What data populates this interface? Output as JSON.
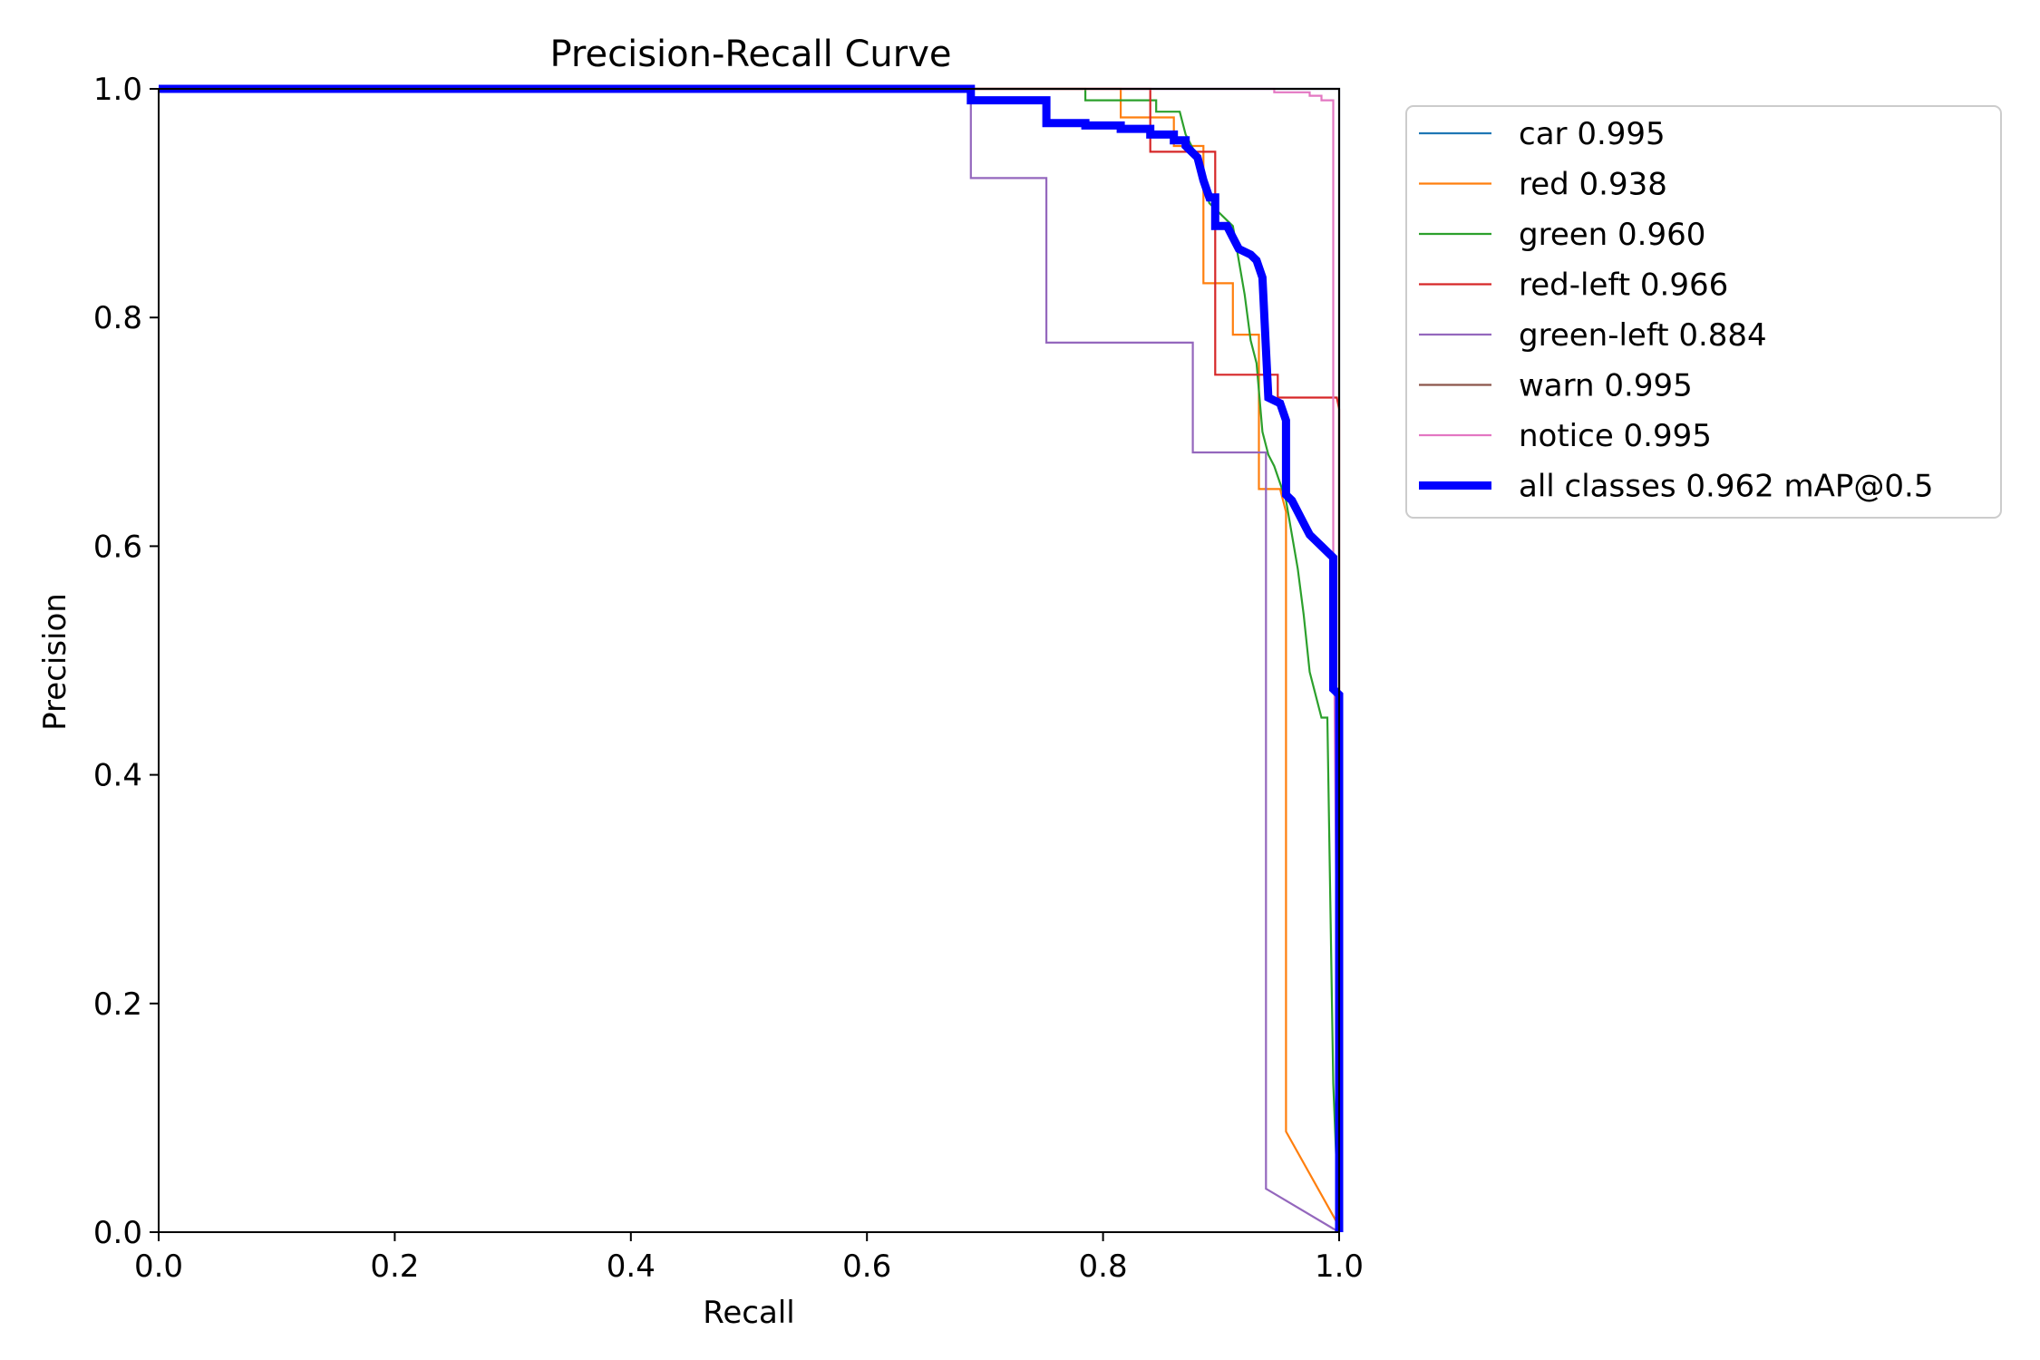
{
  "chart_data": {
    "type": "line",
    "title": "Precision-Recall Curve",
    "xlabel": "Recall",
    "ylabel": "Precision",
    "xlim": [
      0,
      1
    ],
    "ylim": [
      0,
      1
    ],
    "x_ticks": [
      0.0,
      0.2,
      0.4,
      0.6,
      0.8,
      1.0
    ],
    "x_tick_labels": [
      "0.0",
      "0.2",
      "0.4",
      "0.6",
      "0.8",
      "1.0"
    ],
    "y_ticks": [
      0.0,
      0.2,
      0.4,
      0.6,
      0.8,
      1.0
    ],
    "y_tick_labels": [
      "0.0",
      "0.2",
      "0.4",
      "0.6",
      "0.8",
      "1.0"
    ],
    "grid": false,
    "legend_position": "outside-top-right",
    "series": [
      {
        "name": "car",
        "label": "car 0.995",
        "color": "#1f77b4",
        "emphasis": "normal",
        "points": [
          [
            0,
            1
          ],
          [
            1.0,
            1
          ],
          [
            1.0,
            0.5
          ],
          [
            1.0,
            0
          ]
        ]
      },
      {
        "name": "red",
        "label": "red 0.938",
        "color": "#ff7f0e",
        "emphasis": "normal",
        "points": [
          [
            0,
            1
          ],
          [
            0.815,
            1
          ],
          [
            0.815,
            0.975
          ],
          [
            0.86,
            0.975
          ],
          [
            0.86,
            0.95
          ],
          [
            0.885,
            0.95
          ],
          [
            0.885,
            0.83
          ],
          [
            0.91,
            0.83
          ],
          [
            0.91,
            0.785
          ],
          [
            0.932,
            0.785
          ],
          [
            0.932,
            0.65
          ],
          [
            0.95,
            0.65
          ],
          [
            0.955,
            0.63
          ],
          [
            0.955,
            0.088
          ],
          [
            1.0,
            0.005
          ]
        ]
      },
      {
        "name": "green",
        "label": "green 0.960",
        "color": "#2ca02c",
        "emphasis": "normal",
        "points": [
          [
            0,
            1
          ],
          [
            0.785,
            1
          ],
          [
            0.785,
            0.99
          ],
          [
            0.845,
            0.99
          ],
          [
            0.845,
            0.98
          ],
          [
            0.865,
            0.98
          ],
          [
            0.87,
            0.96
          ],
          [
            0.88,
            0.94
          ],
          [
            0.885,
            0.92
          ],
          [
            0.89,
            0.9
          ],
          [
            0.9,
            0.89
          ],
          [
            0.91,
            0.88
          ],
          [
            0.915,
            0.85
          ],
          [
            0.92,
            0.82
          ],
          [
            0.925,
            0.78
          ],
          [
            0.93,
            0.76
          ],
          [
            0.935,
            0.7
          ],
          [
            0.94,
            0.68
          ],
          [
            0.945,
            0.67
          ],
          [
            0.955,
            0.64
          ],
          [
            0.96,
            0.61
          ],
          [
            0.965,
            0.58
          ],
          [
            0.97,
            0.54
          ],
          [
            0.975,
            0.49
          ],
          [
            0.985,
            0.45
          ],
          [
            0.99,
            0.45
          ],
          [
            0.995,
            0.13
          ],
          [
            1.0,
            0.0
          ]
        ]
      },
      {
        "name": "red-left",
        "label": "red-left 0.966",
        "color": "#d62728",
        "emphasis": "normal",
        "points": [
          [
            0,
            1
          ],
          [
            0.84,
            1
          ],
          [
            0.84,
            0.945
          ],
          [
            0.895,
            0.945
          ],
          [
            0.895,
            0.75
          ],
          [
            0.948,
            0.75
          ],
          [
            0.948,
            0.73
          ],
          [
            0.998,
            0.73
          ],
          [
            1.0,
            0.72
          ],
          [
            1.0,
            0.0
          ]
        ]
      },
      {
        "name": "green-left",
        "label": "green-left 0.884",
        "color": "#9467bd",
        "emphasis": "normal",
        "points": [
          [
            0,
            1
          ],
          [
            0.688,
            1
          ],
          [
            0.688,
            0.922
          ],
          [
            0.752,
            0.922
          ],
          [
            0.752,
            0.778
          ],
          [
            0.876,
            0.778
          ],
          [
            0.876,
            0.682
          ],
          [
            0.938,
            0.682
          ],
          [
            0.938,
            0.038
          ],
          [
            1.0,
            0.0
          ]
        ]
      },
      {
        "name": "warn",
        "label": "warn 0.995",
        "color": "#8c564b",
        "emphasis": "normal",
        "points": [
          [
            0,
            1
          ],
          [
            1.0,
            1
          ],
          [
            1.0,
            0
          ]
        ]
      },
      {
        "name": "notice",
        "label": "notice 0.995",
        "color": "#e377c2",
        "emphasis": "normal",
        "points": [
          [
            0,
            1
          ],
          [
            0.945,
            1
          ],
          [
            0.945,
            0.997
          ],
          [
            0.975,
            0.997
          ],
          [
            0.975,
            0.994
          ],
          [
            0.985,
            0.994
          ],
          [
            0.985,
            0.99
          ],
          [
            0.995,
            0.99
          ],
          [
            0.995,
            0.6
          ],
          [
            1.0,
            0.0
          ]
        ]
      },
      {
        "name": "all-classes",
        "label": "all classes 0.962 mAP@0.5",
        "color": "#0000ff",
        "emphasis": "bold",
        "points": [
          [
            0,
            1
          ],
          [
            0.688,
            1
          ],
          [
            0.688,
            0.99
          ],
          [
            0.752,
            0.99
          ],
          [
            0.752,
            0.97
          ],
          [
            0.785,
            0.97
          ],
          [
            0.785,
            0.968
          ],
          [
            0.815,
            0.968
          ],
          [
            0.815,
            0.965
          ],
          [
            0.84,
            0.965
          ],
          [
            0.84,
            0.96
          ],
          [
            0.86,
            0.96
          ],
          [
            0.86,
            0.955
          ],
          [
            0.87,
            0.955
          ],
          [
            0.87,
            0.95
          ],
          [
            0.875,
            0.945
          ],
          [
            0.88,
            0.94
          ],
          [
            0.885,
            0.92
          ],
          [
            0.89,
            0.905
          ],
          [
            0.895,
            0.905
          ],
          [
            0.895,
            0.88
          ],
          [
            0.905,
            0.88
          ],
          [
            0.91,
            0.87
          ],
          [
            0.915,
            0.86
          ],
          [
            0.925,
            0.855
          ],
          [
            0.93,
            0.85
          ],
          [
            0.935,
            0.835
          ],
          [
            0.94,
            0.73
          ],
          [
            0.95,
            0.725
          ],
          [
            0.955,
            0.71
          ],
          [
            0.955,
            0.645
          ],
          [
            0.96,
            0.64
          ],
          [
            0.965,
            0.63
          ],
          [
            0.97,
            0.62
          ],
          [
            0.975,
            0.61
          ],
          [
            0.985,
            0.6
          ],
          [
            0.995,
            0.59
          ],
          [
            0.995,
            0.475
          ],
          [
            1.0,
            0.47
          ],
          [
            1.0,
            0.0
          ]
        ]
      }
    ]
  }
}
